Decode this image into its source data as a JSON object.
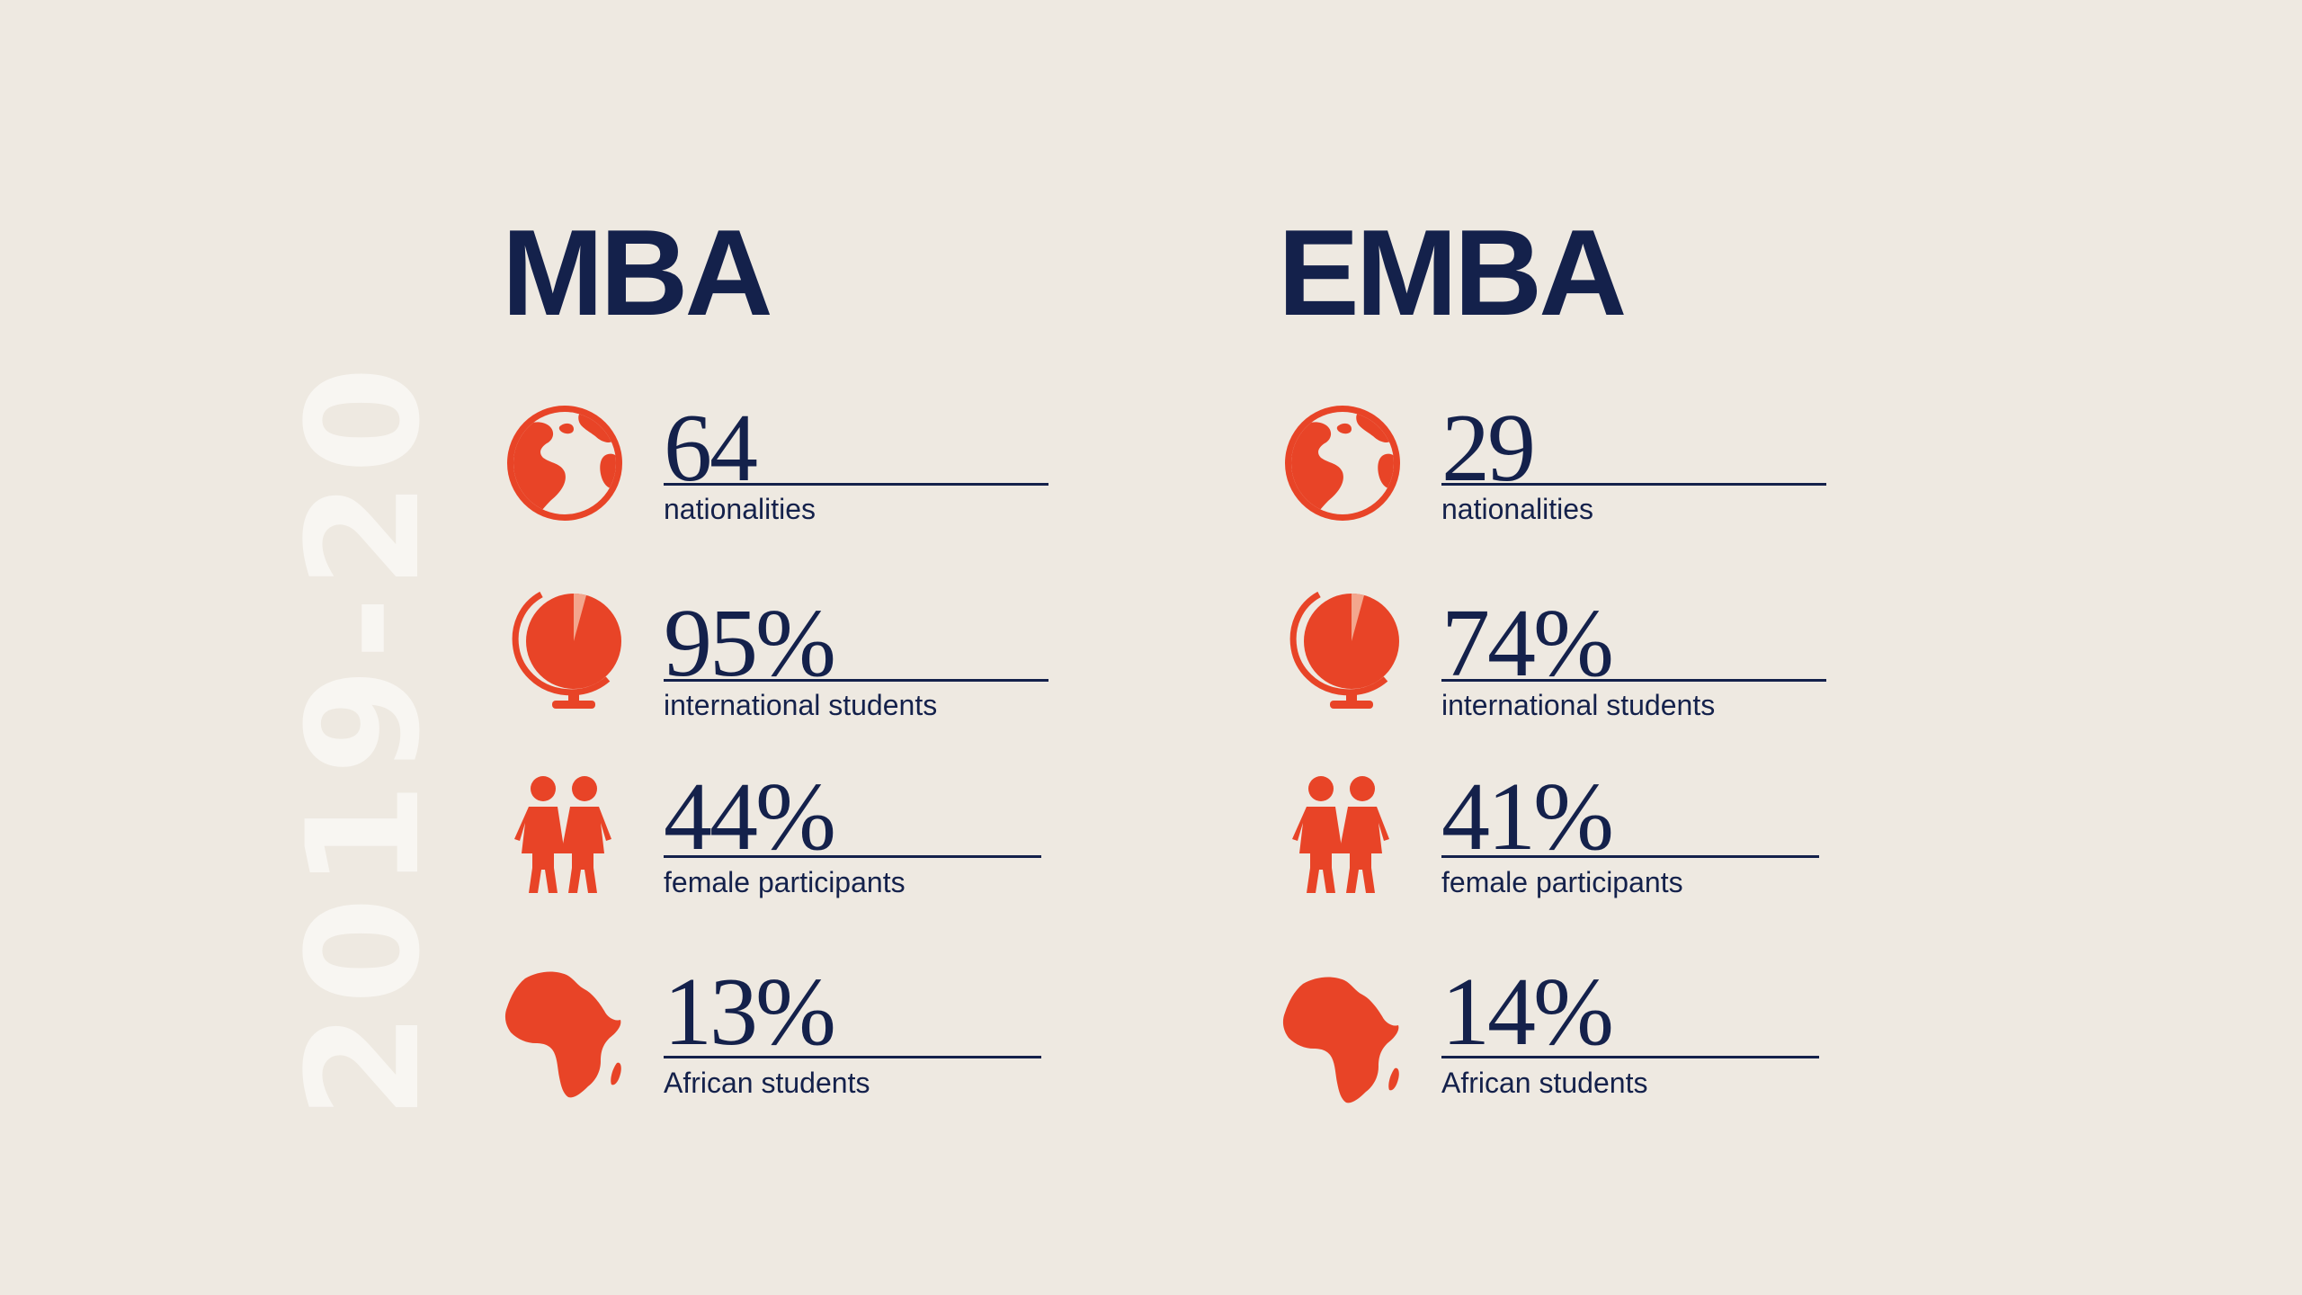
{
  "year": "2019-20",
  "colors": {
    "accent": "#e84427",
    "navy": "#14214b",
    "background": "#eee9e1"
  },
  "columns": [
    {
      "title": "MBA",
      "stats": [
        {
          "icon": "globe-world-icon",
          "value": "64",
          "label": "nationalities"
        },
        {
          "icon": "desk-globe-pie-icon",
          "value": "95%",
          "label": "international students"
        },
        {
          "icon": "female-participants-icon",
          "value": "44%",
          "label": "female participants"
        },
        {
          "icon": "africa-map-icon",
          "value": "13%",
          "label": "African students"
        }
      ]
    },
    {
      "title": "EMBA",
      "stats": [
        {
          "icon": "globe-world-icon",
          "value": "29",
          "label": "nationalities"
        },
        {
          "icon": "desk-globe-pie-icon",
          "value": "74%",
          "label": "international students"
        },
        {
          "icon": "female-participants-icon",
          "value": "41%",
          "label": "female participants"
        },
        {
          "icon": "africa-map-icon",
          "value": "14%",
          "label": "African students"
        }
      ]
    }
  ]
}
